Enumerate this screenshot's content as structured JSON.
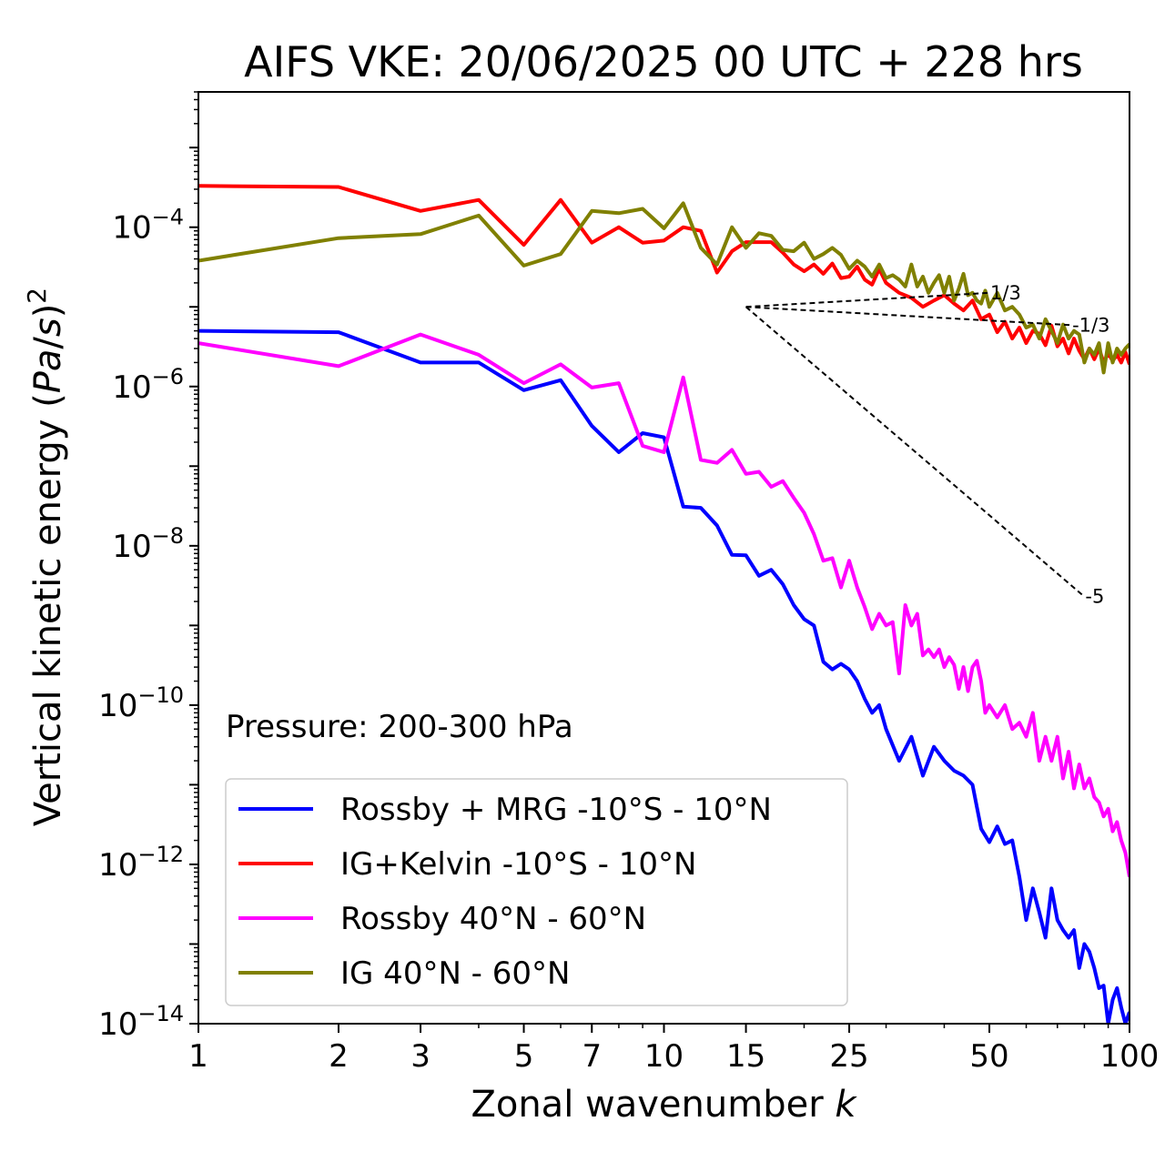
{
  "chart_data": {
    "type": "line",
    "title": "AIFS VKE: 20/06/2025 00 UTC + 228 hrs",
    "xlabel": "Zonal wavenumber k",
    "ylabel": "Vertical kinetic energy (Pa/s)^2",
    "x_scale": "log",
    "y_scale": "log",
    "xlim": [
      1,
      100
    ],
    "ylim": [
      1e-14,
      0.005
    ],
    "x_ticks": [
      1,
      2,
      3,
      5,
      7,
      10,
      15,
      25,
      50,
      100
    ],
    "y_ticks": [
      {
        "value": 0.0001,
        "base": "10",
        "exp": "−4"
      },
      {
        "value": 1e-06,
        "base": "10",
        "exp": "−6"
      },
      {
        "value": 1e-08,
        "base": "10",
        "exp": "−8"
      },
      {
        "value": 1e-10,
        "base": "10",
        "exp": "−10"
      },
      {
        "value": 1e-12,
        "base": "10",
        "exp": "−12"
      },
      {
        "value": 1e-14,
        "base": "10",
        "exp": "−14"
      }
    ],
    "annotation": "Pressure: 200-300 hPa",
    "legend_position": "lower-left",
    "reference_lines": [
      {
        "label": "1/3",
        "x": [
          15,
          50
        ],
        "y": [
          1e-05,
          1.5e-05
        ]
      },
      {
        "label": "-1/3",
        "x": [
          15,
          75
        ],
        "y": [
          1e-05,
          5.9e-06
        ]
      },
      {
        "label": "-5",
        "x": [
          15,
          80
        ],
        "y": [
          1e-05,
          2.3e-09
        ]
      }
    ],
    "series": [
      {
        "name": "Rossby + MRG -10°S - 10°N",
        "color": "#0000ff",
        "x": [
          1,
          2,
          3,
          4,
          5,
          6,
          7,
          8,
          9,
          10,
          11,
          12,
          13,
          14,
          15,
          16,
          17,
          18,
          19,
          20,
          21,
          22,
          23,
          24,
          25,
          26,
          27,
          28,
          29,
          30,
          32,
          34,
          36,
          38,
          40,
          42,
          44,
          46,
          48,
          50,
          52,
          54,
          56,
          58,
          60,
          62,
          64,
          66,
          68,
          70,
          72,
          74,
          76,
          78,
          80,
          82,
          84,
          86,
          88,
          90,
          92,
          94,
          96,
          98,
          100
        ],
        "y": [
          5e-06,
          4.8e-06,
          2e-06,
          2e-06,
          9e-07,
          1.2e-06,
          3.2e-07,
          1.5e-07,
          2.6e-07,
          2.3e-07,
          3.1e-08,
          3e-08,
          1.8e-08,
          7.7e-09,
          7.6e-09,
          4.2e-09,
          5e-09,
          3.3e-09,
          1.8e-09,
          1.2e-09,
          1e-09,
          3.5e-10,
          2.8e-10,
          3.3e-10,
          2.8e-10,
          2e-10,
          1.2e-10,
          8e-11,
          1e-10,
          5e-11,
          2e-11,
          4e-11,
          1.3e-11,
          3e-11,
          2e-11,
          1.5e-11,
          1.3e-11,
          1e-11,
          2.8e-12,
          1.9e-12,
          3e-12,
          1.8e-12,
          2e-12,
          7e-13,
          2e-13,
          5e-13,
          2.5e-13,
          1.2e-13,
          5e-13,
          2e-13,
          1.5e-13,
          1.2e-13,
          1.5e-13,
          5e-14,
          1e-13,
          8e-14,
          5e-14,
          2.8e-14,
          3e-14,
          1e-14,
          2e-14,
          2.8e-14,
          1.6e-14,
          1e-14,
          1.4e-14
        ]
      },
      {
        "name": "IG+Kelvin -10°S - 10°N",
        "color": "#ff0000",
        "x": [
          1,
          2,
          3,
          4,
          5,
          6,
          7,
          8,
          9,
          10,
          11,
          12,
          13,
          14,
          15,
          16,
          17,
          18,
          19,
          20,
          21,
          22,
          23,
          24,
          25,
          26,
          27,
          28,
          29,
          30,
          32,
          34,
          36,
          38,
          40,
          42,
          44,
          46,
          48,
          50,
          52,
          54,
          56,
          58,
          60,
          62,
          64,
          66,
          68,
          70,
          72,
          74,
          76,
          78,
          80,
          82,
          84,
          86,
          88,
          90,
          92,
          94,
          96,
          98,
          100
        ],
        "y": [
          0.00033,
          0.00032,
          0.00016,
          0.00022,
          6e-05,
          0.00022,
          6.4e-05,
          0.0001,
          6.4e-05,
          6.8e-05,
          0.0001,
          9e-05,
          2.7e-05,
          5e-05,
          6.5e-05,
          6.5e-05,
          6.5e-05,
          4.8e-05,
          3.4e-05,
          2.8e-05,
          3.4e-05,
          2.6e-05,
          3.5e-05,
          2.3e-05,
          2.4e-05,
          3.2e-05,
          2.2e-05,
          1.9e-05,
          3e-05,
          2e-05,
          1.5e-05,
          1.3e-05,
          1e-05,
          1.2e-05,
          1.4e-05,
          1.1e-05,
          9e-06,
          1.2e-05,
          7e-06,
          8e-06,
          4.8e-06,
          6.5e-06,
          4e-06,
          5.5e-06,
          3.5e-06,
          5e-06,
          4.6e-06,
          3.3e-06,
          5.8e-06,
          3.2e-06,
          4e-06,
          2.6e-06,
          4e-06,
          2.8e-06,
          2.2e-06,
          3e-06,
          2.2e-06,
          3e-06,
          2e-06,
          2.6e-06,
          2.1e-06,
          2.5e-06,
          2e-06,
          2.7e-06,
          1.9e-06
        ]
      },
      {
        "name": "Rossby 40°N - 60°N",
        "color": "#ff00ff",
        "x": [
          1,
          2,
          3,
          4,
          5,
          6,
          7,
          8,
          9,
          10,
          11,
          12,
          13,
          14,
          15,
          16,
          17,
          18,
          19,
          20,
          21,
          22,
          23,
          24,
          25,
          26,
          27,
          28,
          29,
          30,
          31,
          32,
          33,
          34,
          35,
          36,
          37,
          38,
          39,
          40,
          41,
          42,
          43,
          44,
          45,
          46,
          47,
          48,
          49,
          50,
          52,
          54,
          56,
          58,
          60,
          62,
          64,
          66,
          68,
          70,
          72,
          74,
          76,
          78,
          80,
          82,
          84,
          86,
          88,
          90,
          92,
          94,
          96,
          98,
          100
        ],
        "y": [
          3.5e-06,
          1.8e-06,
          4.5e-06,
          2.5e-06,
          1.1e-06,
          1.9e-06,
          9.7e-07,
          1.1e-06,
          1.8e-07,
          1.5e-07,
          1.3e-06,
          1.2e-07,
          1.1e-07,
          1.6e-07,
          8e-08,
          8.5e-08,
          5.5e-08,
          6.5e-08,
          4e-08,
          2.6e-08,
          1.4e-08,
          6.5e-09,
          7e-09,
          3e-09,
          6.5e-09,
          3e-09,
          1.7e-09,
          9e-10,
          1.4e-09,
          1e-09,
          1.1e-09,
          2.5e-10,
          1.8e-09,
          1e-09,
          1.4e-09,
          4.2e-10,
          5e-10,
          4e-10,
          5e-10,
          3e-10,
          4e-10,
          3.2e-10,
          1.6e-10,
          3e-10,
          1.5e-10,
          3e-10,
          3.6e-10,
          2e-10,
          8e-11,
          1e-10,
          7e-11,
          1e-10,
          5e-11,
          6e-11,
          4e-11,
          8e-11,
          2e-11,
          4e-11,
          2e-11,
          4e-11,
          1.2e-11,
          2.6e-11,
          9e-12,
          1.8e-11,
          9e-12,
          1.2e-11,
          7e-12,
          6e-12,
          4e-12,
          5e-12,
          2.6e-12,
          3.4e-12,
          2e-12,
          1.4e-12,
          7e-13
        ]
      },
      {
        "name": "IG 40°N - 60°N",
        "color": "#808000",
        "x": [
          1,
          2,
          3,
          4,
          5,
          6,
          7,
          8,
          9,
          10,
          11,
          12,
          13,
          14,
          15,
          16,
          17,
          18,
          19,
          20,
          21,
          22,
          23,
          24,
          25,
          26,
          27,
          28,
          29,
          30,
          31,
          32,
          33,
          34,
          35,
          36,
          37,
          38,
          39,
          40,
          41,
          42,
          43,
          44,
          45,
          46,
          47,
          48,
          49,
          50,
          52,
          54,
          56,
          58,
          60,
          62,
          64,
          66,
          68,
          70,
          72,
          74,
          76,
          78,
          80,
          82,
          84,
          86,
          88,
          90,
          92,
          94,
          96,
          98,
          100
        ],
        "y": [
          3.8e-05,
          7.3e-05,
          8.2e-05,
          0.00014,
          3.3e-05,
          4.6e-05,
          0.00016,
          0.00015,
          0.00017,
          9.7e-05,
          0.0002,
          5.5e-05,
          3.4e-05,
          0.0001,
          5.5e-05,
          8.4e-05,
          7.8e-05,
          5.2e-05,
          5e-05,
          6.4e-05,
          4e-05,
          4.6e-05,
          5.5e-05,
          4.5e-05,
          3e-05,
          3.8e-05,
          3.2e-05,
          2.4e-05,
          3.4e-05,
          2.3e-05,
          2.5e-05,
          2.2e-05,
          1.8e-05,
          3.4e-05,
          1.8e-05,
          2.4e-05,
          1.5e-05,
          2e-05,
          2.5e-05,
          1.5e-05,
          2.4e-05,
          1.2e-05,
          1.7e-05,
          2.6e-05,
          1.4e-05,
          1.5e-05,
          1.2e-05,
          1.1e-05,
          1.6e-05,
          1e-05,
          1.5e-05,
          9e-06,
          1e-05,
          8e-06,
          5.5e-06,
          6e-06,
          4e-06,
          7e-06,
          5e-06,
          3.5e-06,
          6e-06,
          4e-06,
          5e-06,
          4.5e-06,
          2e-06,
          3e-06,
          2.5e-06,
          3.5e-06,
          1.5e-06,
          3.5e-06,
          2e-06,
          3e-06,
          2.5e-06,
          3e-06,
          3.4e-06
        ]
      }
    ]
  }
}
